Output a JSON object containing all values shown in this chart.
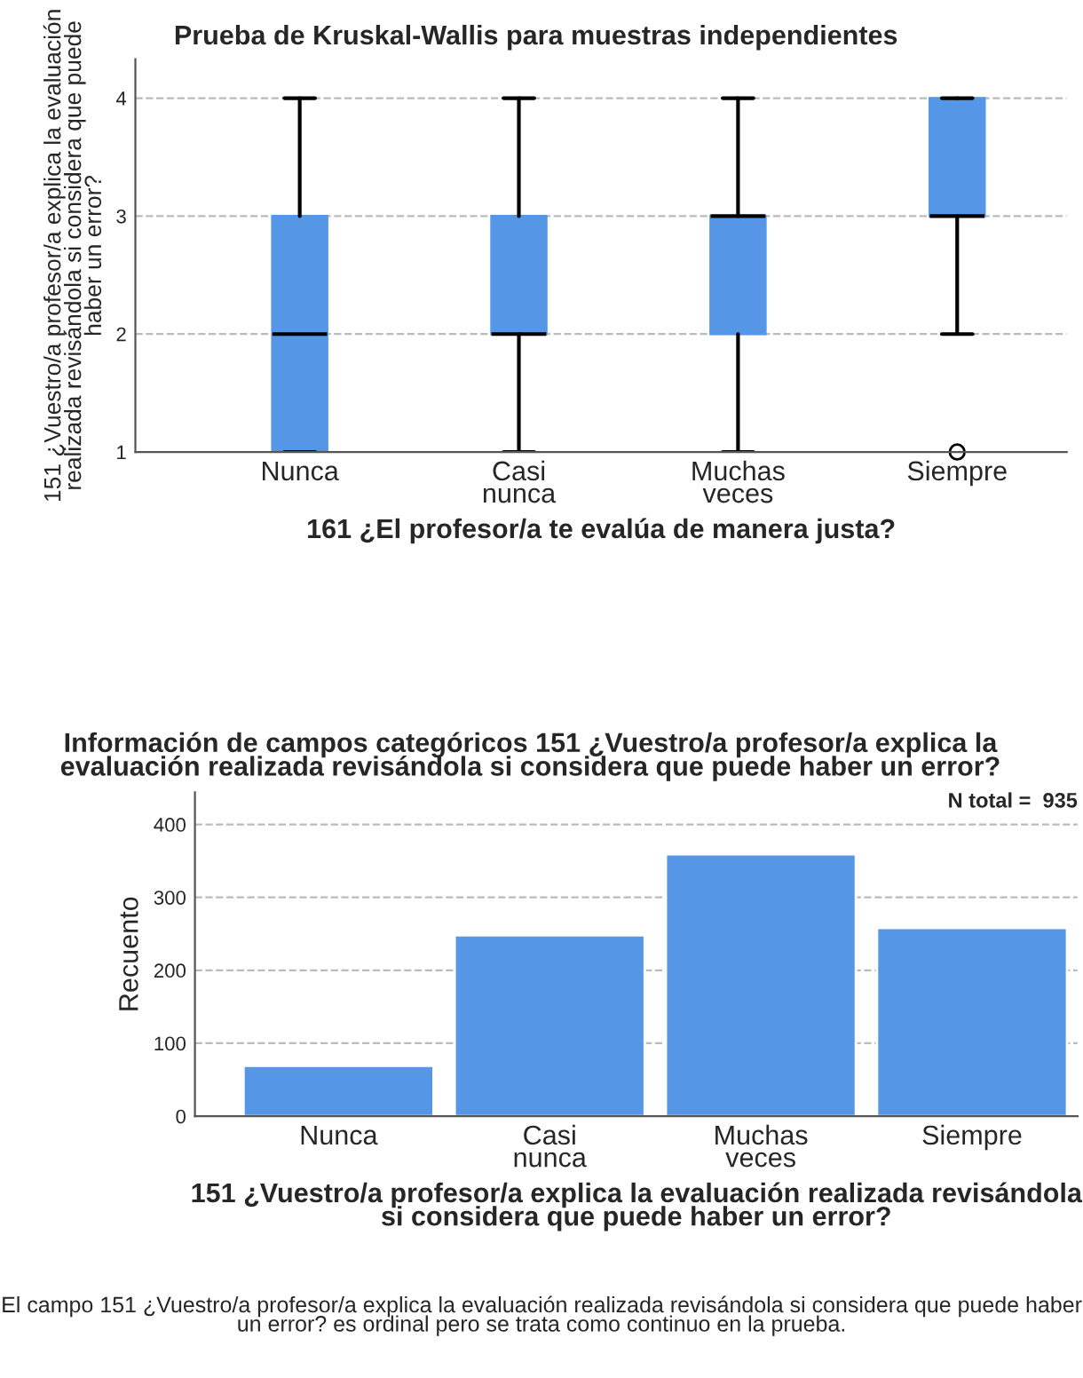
{
  "chart_data": [
    {
      "type": "box",
      "title": "Prueba de Kruskal-Wallis para muestras independientes",
      "xlabel": "161 ¿El profesor/a te evalúa de manera justa?",
      "ylabel": "151 ¿Vuestro/a profesor/a explica la evaluación realizada revisándola si considera que puede haber un error?",
      "categories": [
        "Nunca",
        "Casi\nnunca",
        "Muchas\nveces",
        "Siempre"
      ],
      "color": "#5596e6",
      "ylim": [
        1,
        4.33
      ],
      "yticks": [
        1,
        2,
        3,
        4
      ],
      "grid": "y",
      "boxes": [
        {
          "low": 1,
          "q1": 1,
          "median": 2,
          "q3": 3,
          "high": 4
        },
        {
          "low": 1,
          "q1": 2,
          "median": 2,
          "q3": 3,
          "high": 4
        },
        {
          "low": 1,
          "q1": 2,
          "median": 3,
          "q3": 3,
          "high": 4
        },
        {
          "low": 2,
          "q1": 3,
          "median": 3,
          "q3": 4,
          "high": 4,
          "outliers": [
            1
          ]
        }
      ]
    },
    {
      "type": "bar",
      "title": "Información de campos categóricos 151 ¿Vuestro/a profesor/a explica la evaluación realizada revisándola si considera que puede haber un error?",
      "xlabel": "151 ¿Vuestro/a profesor/a explica la evaluación realizada revisándola si considera que puede haber un error?",
      "ylabel": "Recuento",
      "categories": [
        "Nunca",
        "Casi\nnunca",
        "Muchas\nveces",
        "Siempre"
      ],
      "values": [
        69,
        248,
        359,
        258
      ],
      "color": "#5596e6",
      "ylim": [
        0,
        444
      ],
      "yticks": [
        0,
        100,
        200,
        300,
        400
      ],
      "grid": "y",
      "annotations": [
        "N total =  935",
        "El campo 151 ¿Vuestro/a profesor/a explica la evaluación realizada revisándola si considera que puede haber un error? es ordinal pero se trata como continuo en la prueba."
      ]
    }
  ]
}
